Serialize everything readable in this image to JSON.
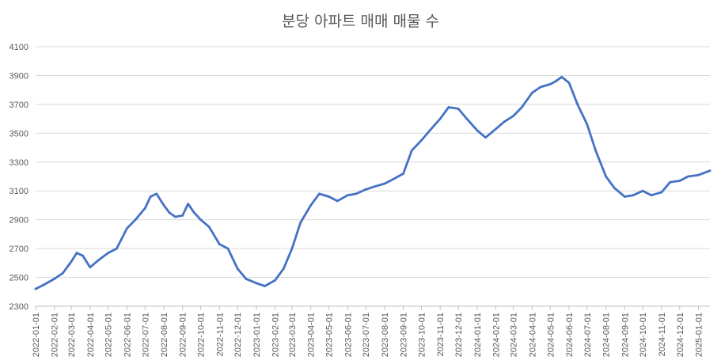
{
  "chart_data": {
    "type": "line",
    "title": "분당 아파트 매매 매물 수",
    "xlabel": "",
    "ylabel": "",
    "ylim": [
      2300,
      4100
    ],
    "yticks": [
      "2300",
      "2500",
      "2700",
      "2900",
      "3100",
      "3300",
      "3500",
      "3700",
      "3900",
      "4100"
    ],
    "x_tick_labels": [
      "2022-01-01",
      "2022-02-01",
      "2022-03-01",
      "2022-04-01",
      "2022-05-01",
      "2022-06-01",
      "2022-07-01",
      "2022-08-01",
      "2022-09-01",
      "2022-10-01",
      "2022-11-01",
      "2022-12-01",
      "2023-01-01",
      "2023-02-01",
      "2023-03-01",
      "2023-04-01",
      "2023-05-01",
      "2023-06-01",
      "2023-07-01",
      "2023-08-01",
      "2023-09-01",
      "2023-10-01",
      "2023-11-01",
      "2023-12-01",
      "2024-01-01",
      "2024-02-01",
      "2024-03-01",
      "2024-04-01",
      "2024-05-01",
      "2024-06-01",
      "2024-07-01",
      "2024-08-01",
      "2024-09-01",
      "2024-10-01",
      "2024-11-01",
      "2024-12-01",
      "2025-01-01"
    ],
    "x_range": [
      "2022-01-01",
      "2025-01-20"
    ],
    "grid": true,
    "legend": "none",
    "line_color": "#4472C4",
    "series": [
      {
        "x": [
          "2022-01-01",
          "2022-01-15",
          "2022-02-01",
          "2022-02-15",
          "2022-03-01",
          "2022-03-10",
          "2022-03-20",
          "2022-04-01",
          "2022-04-15",
          "2022-05-01",
          "2022-05-15",
          "2022-06-01",
          "2022-06-15",
          "2022-07-01",
          "2022-07-10",
          "2022-07-20",
          "2022-08-01",
          "2022-08-10",
          "2022-08-20",
          "2022-09-01",
          "2022-09-10",
          "2022-09-20",
          "2022-10-01",
          "2022-10-15",
          "2022-11-01",
          "2022-11-15",
          "2022-12-01",
          "2022-12-15",
          "2023-01-01",
          "2023-01-15",
          "2023-02-01",
          "2023-02-15",
          "2023-03-01",
          "2023-03-15",
          "2023-04-01",
          "2023-04-15",
          "2023-05-01",
          "2023-05-15",
          "2023-06-01",
          "2023-06-15",
          "2023-07-01",
          "2023-07-15",
          "2023-08-01",
          "2023-08-15",
          "2023-09-01",
          "2023-09-15",
          "2023-10-01",
          "2023-10-15",
          "2023-11-01",
          "2023-11-15",
          "2023-12-01",
          "2023-12-15",
          "2024-01-01",
          "2024-01-15",
          "2024-02-01",
          "2024-02-15",
          "2024-03-01",
          "2024-03-15",
          "2024-04-01",
          "2024-04-15",
          "2024-05-01",
          "2024-05-10",
          "2024-05-20",
          "2024-06-01",
          "2024-06-15",
          "2024-07-01",
          "2024-07-15",
          "2024-08-01",
          "2024-08-15",
          "2024-09-01",
          "2024-09-15",
          "2024-10-01",
          "2024-10-15",
          "2024-11-01",
          "2024-11-15",
          "2024-12-01",
          "2024-12-15",
          "2025-01-01",
          "2025-01-20"
        ],
        "values": [
          2420,
          2450,
          2490,
          2530,
          2610,
          2670,
          2650,
          2570,
          2620,
          2670,
          2700,
          2840,
          2900,
          2980,
          3060,
          3080,
          3000,
          2950,
          2920,
          2930,
          3010,
          2950,
          2900,
          2850,
          2730,
          2700,
          2560,
          2490,
          2460,
          2440,
          2480,
          2560,
          2700,
          2880,
          3000,
          3080,
          3060,
          3030,
          3070,
          3080,
          3110,
          3130,
          3150,
          3180,
          3220,
          3380,
          3450,
          3520,
          3600,
          3680,
          3670,
          3600,
          3520,
          3470,
          3530,
          3580,
          3620,
          3680,
          3780,
          3820,
          3840,
          3860,
          3890,
          3850,
          3700,
          3560,
          3380,
          3200,
          3120,
          3060,
          3070,
          3100,
          3070,
          3090,
          3160,
          3170,
          3200,
          3210,
          3240
        ]
      }
    ]
  }
}
